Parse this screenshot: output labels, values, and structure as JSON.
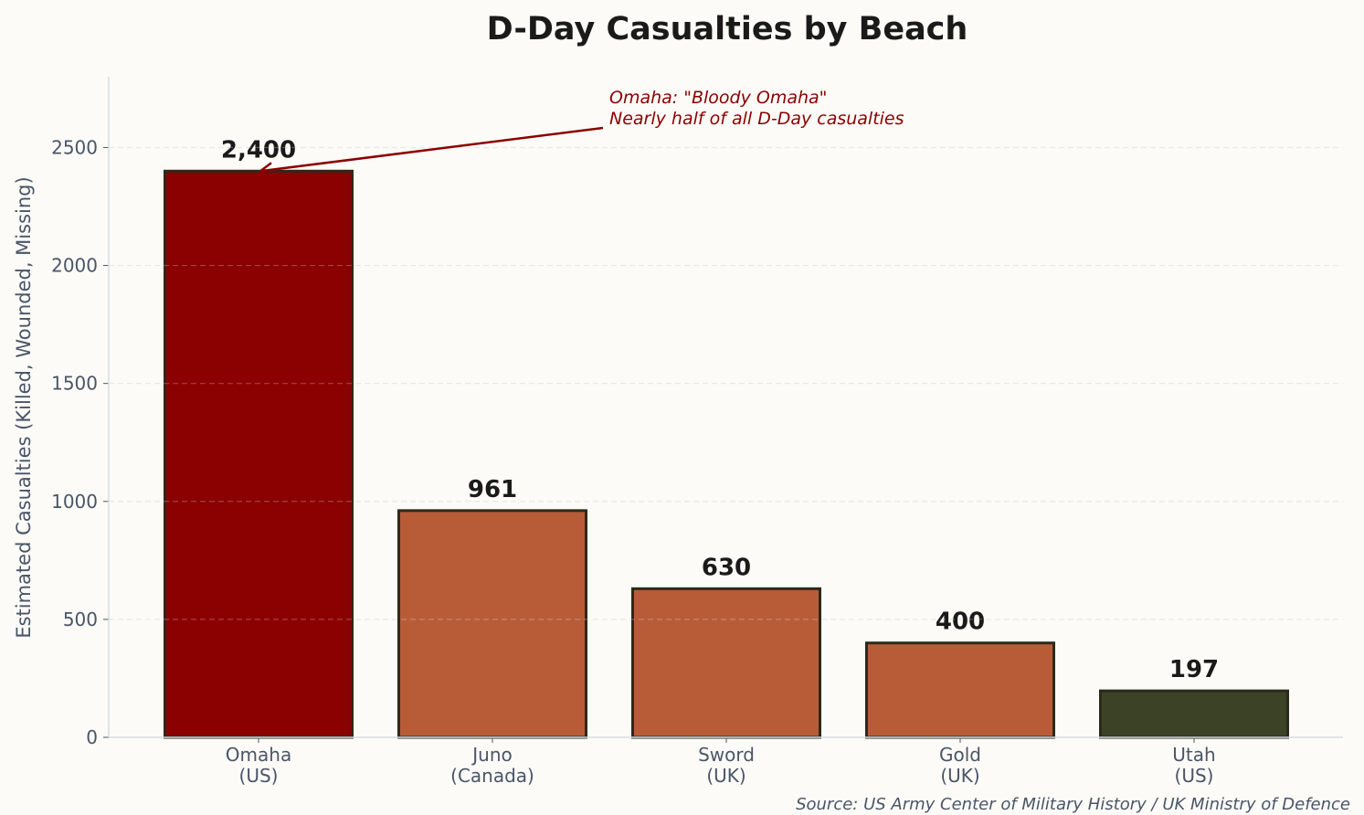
{
  "chart_data": {
    "type": "bar",
    "title": "D-Day Casualties by Beach",
    "xlabel": "",
    "ylabel": "Estimated Casualties (Killed, Wounded, Missing)",
    "categories": [
      "Omaha\n(US)",
      "Juno\n(Canada)",
      "Sword\n(UK)",
      "Gold\n(UK)",
      "Utah\n(US)"
    ],
    "values": [
      2400,
      961,
      630,
      400,
      197
    ],
    "value_labels": [
      "2,400",
      "961",
      "630",
      "400",
      "197"
    ],
    "colors": [
      "#8b0000",
      "#b85c38",
      "#b85c38",
      "#b85c38",
      "#3b4226"
    ],
    "edge_color": "#2b2a1a",
    "ylim": [
      0,
      2800
    ],
    "yticks": [
      0,
      500,
      1000,
      1500,
      2000,
      2500
    ],
    "grid": true,
    "annotation": {
      "lines": [
        "Omaha: \"Bloody Omaha\"",
        "Nearly half of all D-Day casualties"
      ],
      "target_category": "Omaha\n(US)",
      "target_value": 2400,
      "color": "#8b0000"
    },
    "source": "Source: US Army Center of Military History / UK Ministry of Defence"
  }
}
